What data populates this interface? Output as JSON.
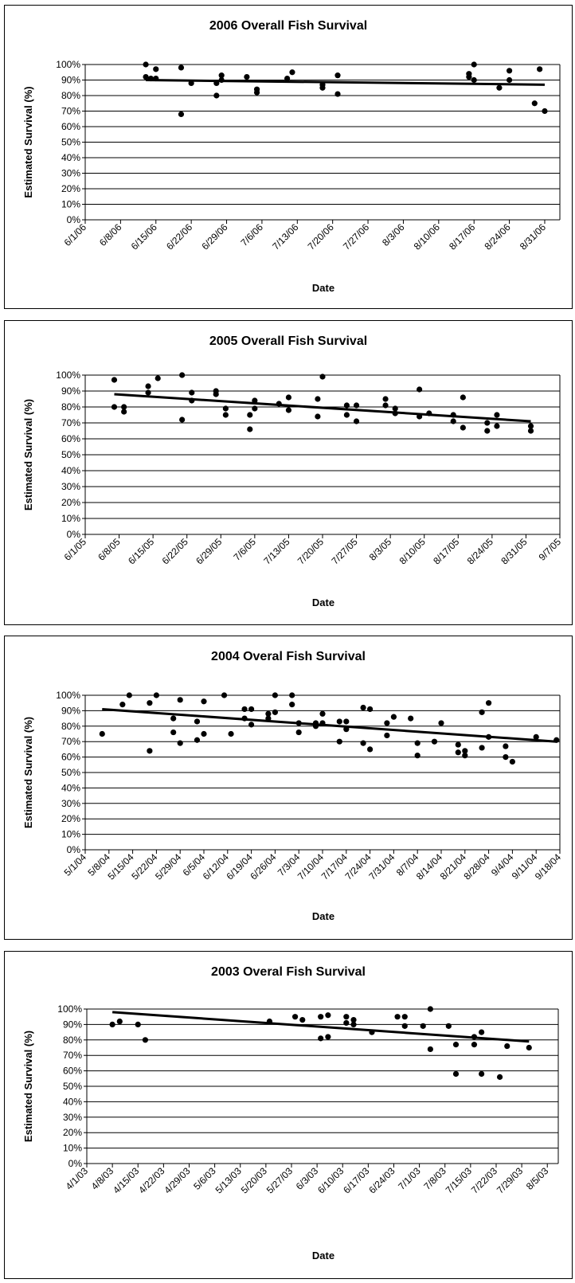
{
  "chart_data": [
    {
      "type": "scatter",
      "title": "2006 Overall Fish Survival",
      "xlabel": "Date",
      "ylabel": "Estimated Survival (%)",
      "x_type": "date",
      "xlim": [
        "2006-06-01",
        "2006-09-03"
      ],
      "ylim": [
        0,
        100
      ],
      "x_ticks": [
        "6/1/06",
        "6/8/06",
        "6/15/06",
        "6/22/06",
        "6/29/06",
        "7/6/06",
        "7/13/06",
        "7/20/06",
        "7/27/06",
        "8/3/06",
        "8/10/06",
        "8/17/06",
        "8/24/06",
        "8/31/06"
      ],
      "y_ticks": [
        "0%",
        "10%",
        "20%",
        "30%",
        "40%",
        "50%",
        "60%",
        "70%",
        "80%",
        "90%",
        "100%"
      ],
      "grid": true,
      "legend": "none",
      "points": [
        {
          "x": "2006-06-13",
          "y": 100
        },
        {
          "x": "2006-06-13",
          "y": 92
        },
        {
          "x": "2006-06-14",
          "y": 91
        },
        {
          "x": "2006-06-15",
          "y": 97
        },
        {
          "x": "2006-06-15",
          "y": 91
        },
        {
          "x": "2006-06-20",
          "y": 98
        },
        {
          "x": "2006-06-20",
          "y": 68
        },
        {
          "x": "2006-06-22",
          "y": 88
        },
        {
          "x": "2006-06-27",
          "y": 80
        },
        {
          "x": "2006-06-27",
          "y": 88
        },
        {
          "x": "2006-06-28",
          "y": 93
        },
        {
          "x": "2006-06-28",
          "y": 90
        },
        {
          "x": "2006-07-03",
          "y": 92
        },
        {
          "x": "2006-07-05",
          "y": 84
        },
        {
          "x": "2006-07-05",
          "y": 82
        },
        {
          "x": "2006-07-11",
          "y": 91
        },
        {
          "x": "2006-07-12",
          "y": 95
        },
        {
          "x": "2006-07-18",
          "y": 87
        },
        {
          "x": "2006-07-18",
          "y": 85
        },
        {
          "x": "2006-07-21",
          "y": 93
        },
        {
          "x": "2006-07-21",
          "y": 81
        },
        {
          "x": "2006-08-16",
          "y": 94
        },
        {
          "x": "2006-08-16",
          "y": 92
        },
        {
          "x": "2006-08-17",
          "y": 100
        },
        {
          "x": "2006-08-17",
          "y": 90
        },
        {
          "x": "2006-08-22",
          "y": 85
        },
        {
          "x": "2006-08-24",
          "y": 96
        },
        {
          "x": "2006-08-24",
          "y": 90
        },
        {
          "x": "2006-08-29",
          "y": 75
        },
        {
          "x": "2006-08-30",
          "y": 97
        },
        {
          "x": "2006-08-31",
          "y": 70
        }
      ],
      "trendline": [
        {
          "x": "2006-06-13",
          "y": 90
        },
        {
          "x": "2006-08-31",
          "y": 87
        }
      ]
    },
    {
      "type": "scatter",
      "title": "2005 Overall Fish Survival",
      "xlabel": "Date",
      "ylabel": "Estimated Survival (%)",
      "x_type": "date",
      "xlim": [
        "2005-06-01",
        "2005-09-07"
      ],
      "ylim": [
        0,
        100
      ],
      "x_ticks": [
        "6/1/05",
        "6/8/05",
        "6/15/05",
        "6/22/05",
        "6/29/05",
        "7/6/05",
        "7/13/05",
        "7/20/05",
        "7/27/05",
        "8/3/05",
        "8/10/05",
        "8/17/05",
        "8/24/05",
        "8/31/05",
        "9/7/05"
      ],
      "y_ticks": [
        "0%",
        "10%",
        "20%",
        "30%",
        "40%",
        "50%",
        "60%",
        "70%",
        "80%",
        "90%",
        "100%"
      ],
      "grid": true,
      "legend": "none",
      "points": [
        {
          "x": "2005-06-07",
          "y": 97
        },
        {
          "x": "2005-06-07",
          "y": 80
        },
        {
          "x": "2005-06-09",
          "y": 80
        },
        {
          "x": "2005-06-09",
          "y": 77
        },
        {
          "x": "2005-06-14",
          "y": 93
        },
        {
          "x": "2005-06-14",
          "y": 89
        },
        {
          "x": "2005-06-16",
          "y": 98
        },
        {
          "x": "2005-06-21",
          "y": 100
        },
        {
          "x": "2005-06-21",
          "y": 72
        },
        {
          "x": "2005-06-23",
          "y": 89
        },
        {
          "x": "2005-06-23",
          "y": 84
        },
        {
          "x": "2005-06-28",
          "y": 90
        },
        {
          "x": "2005-06-28",
          "y": 88
        },
        {
          "x": "2005-06-30",
          "y": 79
        },
        {
          "x": "2005-06-30",
          "y": 75
        },
        {
          "x": "2005-07-05",
          "y": 75
        },
        {
          "x": "2005-07-05",
          "y": 66
        },
        {
          "x": "2005-07-06",
          "y": 84
        },
        {
          "x": "2005-07-06",
          "y": 79
        },
        {
          "x": "2005-07-11",
          "y": 82
        },
        {
          "x": "2005-07-13",
          "y": 86
        },
        {
          "x": "2005-07-13",
          "y": 78
        },
        {
          "x": "2005-07-19",
          "y": 85
        },
        {
          "x": "2005-07-19",
          "y": 74
        },
        {
          "x": "2005-07-20",
          "y": 99
        },
        {
          "x": "2005-07-25",
          "y": 81
        },
        {
          "x": "2005-07-25",
          "y": 75
        },
        {
          "x": "2005-07-27",
          "y": 81
        },
        {
          "x": "2005-07-27",
          "y": 71
        },
        {
          "x": "2005-08-02",
          "y": 85
        },
        {
          "x": "2005-08-02",
          "y": 81
        },
        {
          "x": "2005-08-04",
          "y": 79
        },
        {
          "x": "2005-08-04",
          "y": 76
        },
        {
          "x": "2005-08-09",
          "y": 91
        },
        {
          "x": "2005-08-09",
          "y": 74
        },
        {
          "x": "2005-08-11",
          "y": 76
        },
        {
          "x": "2005-08-16",
          "y": 75
        },
        {
          "x": "2005-08-16",
          "y": 71
        },
        {
          "x": "2005-08-18",
          "y": 86
        },
        {
          "x": "2005-08-18",
          "y": 67
        },
        {
          "x": "2005-08-23",
          "y": 70
        },
        {
          "x": "2005-08-23",
          "y": 65
        },
        {
          "x": "2005-08-25",
          "y": 75
        },
        {
          "x": "2005-08-25",
          "y": 68
        },
        {
          "x": "2005-09-01",
          "y": 68
        },
        {
          "x": "2005-09-01",
          "y": 65
        }
      ],
      "trendline": [
        {
          "x": "2005-06-07",
          "y": 88
        },
        {
          "x": "2005-09-01",
          "y": 71
        }
      ]
    },
    {
      "type": "scatter",
      "title": "2004 Overal Fish Survival",
      "xlabel": "Date",
      "ylabel": "Estimated Survival (%)",
      "x_type": "date",
      "xlim": [
        "2004-05-01",
        "2004-09-18"
      ],
      "ylim": [
        0,
        100
      ],
      "x_ticks": [
        "5/1/04",
        "5/8/04",
        "5/15/04",
        "5/22/04",
        "5/29/04",
        "6/5/04",
        "6/12/04",
        "6/19/04",
        "6/26/04",
        "7/3/04",
        "7/10/04",
        "7/17/04",
        "7/24/04",
        "7/31/04",
        "8/7/04",
        "8/14/04",
        "8/21/04",
        "8/28/04",
        "9/4/04",
        "9/11/04",
        "9/18/04"
      ],
      "y_ticks": [
        "0%",
        "10%",
        "20%",
        "30%",
        "40%",
        "50%",
        "60%",
        "70%",
        "80%",
        "90%",
        "100%"
      ],
      "grid": true,
      "legend": "none",
      "points": [
        {
          "x": "2004-05-06",
          "y": 75
        },
        {
          "x": "2004-05-12",
          "y": 94
        },
        {
          "x": "2004-05-14",
          "y": 100
        },
        {
          "x": "2004-05-20",
          "y": 95
        },
        {
          "x": "2004-05-20",
          "y": 64
        },
        {
          "x": "2004-05-22",
          "y": 100
        },
        {
          "x": "2004-05-27",
          "y": 85
        },
        {
          "x": "2004-05-27",
          "y": 76
        },
        {
          "x": "2004-05-29",
          "y": 97
        },
        {
          "x": "2004-05-29",
          "y": 69
        },
        {
          "x": "2004-06-03",
          "y": 83
        },
        {
          "x": "2004-06-03",
          "y": 71
        },
        {
          "x": "2004-06-05",
          "y": 96
        },
        {
          "x": "2004-06-05",
          "y": 75
        },
        {
          "x": "2004-06-11",
          "y": 100
        },
        {
          "x": "2004-06-13",
          "y": 75
        },
        {
          "x": "2004-06-17",
          "y": 91
        },
        {
          "x": "2004-06-17",
          "y": 85
        },
        {
          "x": "2004-06-19",
          "y": 91
        },
        {
          "x": "2004-06-19",
          "y": 81
        },
        {
          "x": "2004-06-24",
          "y": 88
        },
        {
          "x": "2004-06-24",
          "y": 85
        },
        {
          "x": "2004-06-26",
          "y": 100
        },
        {
          "x": "2004-06-26",
          "y": 89
        },
        {
          "x": "2004-07-01",
          "y": 100
        },
        {
          "x": "2004-07-01",
          "y": 94
        },
        {
          "x": "2004-07-03",
          "y": 82
        },
        {
          "x": "2004-07-03",
          "y": 76
        },
        {
          "x": "2004-07-08",
          "y": 82
        },
        {
          "x": "2004-07-08",
          "y": 80
        },
        {
          "x": "2004-07-10",
          "y": 88
        },
        {
          "x": "2004-07-10",
          "y": 82
        },
        {
          "x": "2004-07-15",
          "y": 83
        },
        {
          "x": "2004-07-15",
          "y": 70
        },
        {
          "x": "2004-07-17",
          "y": 83
        },
        {
          "x": "2004-07-17",
          "y": 78
        },
        {
          "x": "2004-07-22",
          "y": 92
        },
        {
          "x": "2004-07-22",
          "y": 69
        },
        {
          "x": "2004-07-24",
          "y": 91
        },
        {
          "x": "2004-07-24",
          "y": 65
        },
        {
          "x": "2004-07-29",
          "y": 82
        },
        {
          "x": "2004-07-29",
          "y": 74
        },
        {
          "x": "2004-07-31",
          "y": 86
        },
        {
          "x": "2004-08-05",
          "y": 85
        },
        {
          "x": "2004-08-07",
          "y": 69
        },
        {
          "x": "2004-08-07",
          "y": 61
        },
        {
          "x": "2004-08-12",
          "y": 70
        },
        {
          "x": "2004-08-14",
          "y": 82
        },
        {
          "x": "2004-08-19",
          "y": 68
        },
        {
          "x": "2004-08-19",
          "y": 63
        },
        {
          "x": "2004-08-21",
          "y": 64
        },
        {
          "x": "2004-08-21",
          "y": 61
        },
        {
          "x": "2004-08-26",
          "y": 89
        },
        {
          "x": "2004-08-26",
          "y": 66
        },
        {
          "x": "2004-08-28",
          "y": 95
        },
        {
          "x": "2004-08-28",
          "y": 73
        },
        {
          "x": "2004-09-02",
          "y": 67
        },
        {
          "x": "2004-09-02",
          "y": 60
        },
        {
          "x": "2004-09-04",
          "y": 57
        },
        {
          "x": "2004-09-11",
          "y": 73
        },
        {
          "x": "2004-09-17",
          "y": 71
        }
      ],
      "trendline": [
        {
          "x": "2004-05-06",
          "y": 91
        },
        {
          "x": "2004-09-17",
          "y": 70
        }
      ]
    },
    {
      "type": "scatter",
      "title": "2003 Overal Fish Survival",
      "xlabel": "Date",
      "ylabel": "Estimated Survival (%)",
      "x_type": "date",
      "xlim": [
        "2003-04-01",
        "2003-08-08"
      ],
      "ylim": [
        0,
        100
      ],
      "x_ticks": [
        "4/1/03",
        "4/8/03",
        "4/15/03",
        "4/22/03",
        "4/29/03",
        "5/6/03",
        "5/13/03",
        "5/20/03",
        "5/27/03",
        "6/3/03",
        "6/10/03",
        "6/17/03",
        "6/24/03",
        "7/1/03",
        "7/8/03",
        "7/15/03",
        "7/22/03",
        "7/29/03",
        "8/5/03"
      ],
      "y_ticks": [
        "0%",
        "10%",
        "20%",
        "30%",
        "40%",
        "50%",
        "60%",
        "70%",
        "80%",
        "90%",
        "100%"
      ],
      "grid": true,
      "legend": "none",
      "points": [
        {
          "x": "2003-04-08",
          "y": 90
        },
        {
          "x": "2003-04-10",
          "y": 92
        },
        {
          "x": "2003-04-15",
          "y": 90
        },
        {
          "x": "2003-04-17",
          "y": 80
        },
        {
          "x": "2003-05-21",
          "y": 92
        },
        {
          "x": "2003-05-28",
          "y": 95
        },
        {
          "x": "2003-05-30",
          "y": 93
        },
        {
          "x": "2003-06-04",
          "y": 95
        },
        {
          "x": "2003-06-04",
          "y": 81
        },
        {
          "x": "2003-06-06",
          "y": 96
        },
        {
          "x": "2003-06-06",
          "y": 82
        },
        {
          "x": "2003-06-11",
          "y": 95
        },
        {
          "x": "2003-06-11",
          "y": 91
        },
        {
          "x": "2003-06-13",
          "y": 93
        },
        {
          "x": "2003-06-13",
          "y": 90
        },
        {
          "x": "2003-06-18",
          "y": 85
        },
        {
          "x": "2003-06-25",
          "y": 95
        },
        {
          "x": "2003-06-27",
          "y": 95
        },
        {
          "x": "2003-06-27",
          "y": 89
        },
        {
          "x": "2003-07-02",
          "y": 89
        },
        {
          "x": "2003-07-04",
          "y": 100
        },
        {
          "x": "2003-07-04",
          "y": 74
        },
        {
          "x": "2003-07-09",
          "y": 89
        },
        {
          "x": "2003-07-11",
          "y": 77
        },
        {
          "x": "2003-07-11",
          "y": 58
        },
        {
          "x": "2003-07-16",
          "y": 82
        },
        {
          "x": "2003-07-16",
          "y": 77
        },
        {
          "x": "2003-07-18",
          "y": 85
        },
        {
          "x": "2003-07-18",
          "y": 58
        },
        {
          "x": "2003-07-23",
          "y": 56
        },
        {
          "x": "2003-07-25",
          "y": 76
        },
        {
          "x": "2003-07-31",
          "y": 75
        }
      ],
      "trendline": [
        {
          "x": "2003-04-08",
          "y": 98
        },
        {
          "x": "2003-07-31",
          "y": 79
        }
      ]
    }
  ]
}
